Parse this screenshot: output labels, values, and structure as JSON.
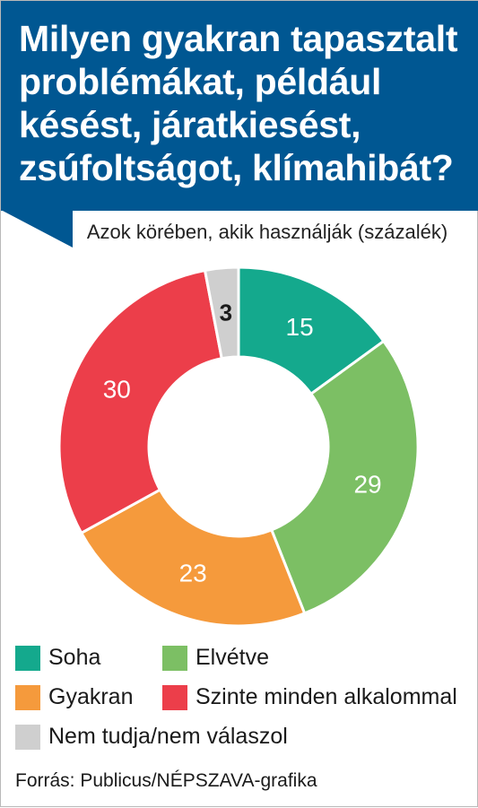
{
  "header": {
    "title": "Milyen gyakran tapasztalt problémákat, például késést, járatkiesést, zsúfoltságot, klímahibát?"
  },
  "subtitle": "Azok körében, akik használják (százalék)",
  "chart_data": {
    "type": "pie",
    "donut": true,
    "title": "Milyen gyakran tapasztalt problémákat, például késést, járatkiesést, zsúfoltságot, klímahibát?",
    "subtitle": "Azok körében, akik használják (százalék)",
    "categories": [
      "Soha",
      "Elvétve",
      "Gyakran",
      "Szinte minden alkalommal",
      "Nem tudja/nem válaszol"
    ],
    "values": [
      15,
      29,
      23,
      30,
      3
    ],
    "colors": [
      "#14a98d",
      "#7cbf64",
      "#f59a3c",
      "#ec3e4a",
      "#cfcfcf"
    ],
    "label_colors": [
      "#ffffff",
      "#ffffff",
      "#ffffff",
      "#ffffff",
      "#1a1a1a"
    ],
    "legend_placement": "bottom",
    "unit": "százalék"
  },
  "legend": {
    "items": [
      {
        "label": "Soha",
        "color": "#14a98d"
      },
      {
        "label": "Elvétve",
        "color": "#7cbf64"
      },
      {
        "label": "Gyakran",
        "color": "#f59a3c"
      },
      {
        "label": "Szinte minden alkalommal",
        "color": "#ec3e4a"
      },
      {
        "label": "Nem tudja/nem válaszol",
        "color": "#cfcfcf"
      }
    ]
  },
  "source": "Forrás: Publicus/NÉPSZAVA-grafika",
  "colors": {
    "header_bg": "#005792",
    "header_text": "#ffffff"
  }
}
